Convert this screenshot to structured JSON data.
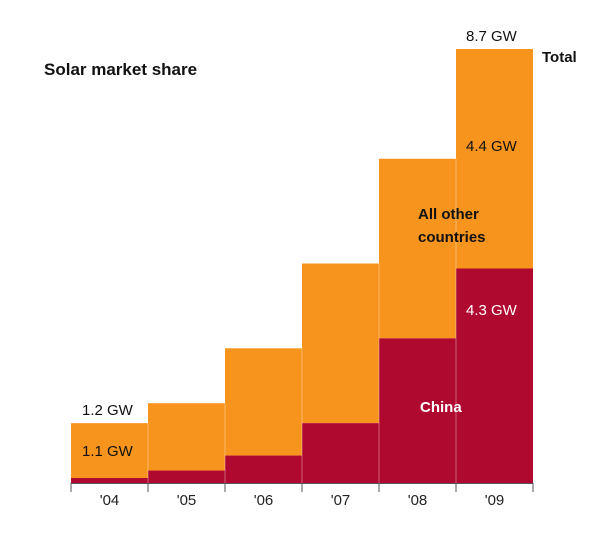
{
  "chart_data": {
    "type": "bar",
    "title": "Solar market share",
    "categories": [
      "'04",
      "'05",
      "'06",
      "'07",
      "'08",
      "'09"
    ],
    "series": [
      {
        "name": "China",
        "values": [
          0.1,
          0.25,
          0.55,
          1.2,
          2.9,
          4.3
        ]
      },
      {
        "name": "All other countries",
        "values": [
          1.1,
          1.35,
          2.15,
          3.2,
          3.6,
          4.4
        ]
      }
    ],
    "totals": [
      1.2,
      1.6,
      2.7,
      4.4,
      6.5,
      8.7
    ],
    "series_total_label": "Total",
    "data_labels": {
      "total_2004": "1.2 GW",
      "other_2004": "1.1 GW",
      "total_2009": "8.7 GW",
      "other_2009": "4.4 GW",
      "china_2009": "4.3 GW"
    },
    "annotations": {
      "other_line1": "All other",
      "other_line2": "countries",
      "china": "China"
    },
    "ylim": [
      0,
      8.7
    ],
    "stacked": true,
    "grid": false,
    "colors": {
      "other": "#F7941D",
      "china": "#B0092F",
      "axis": "#555555"
    }
  }
}
